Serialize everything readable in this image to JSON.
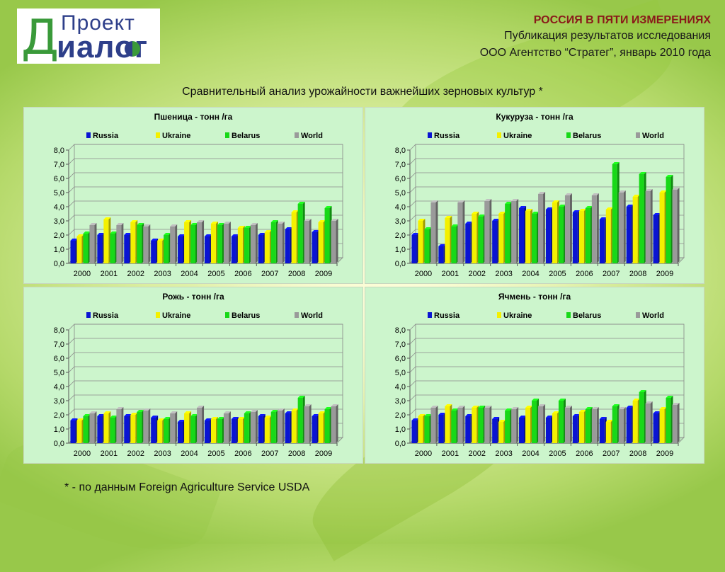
{
  "header": {
    "title": "РОССИЯ В ПЯТИ ИЗМЕРЕНИЯХ",
    "line2": "Публикация результатов исследования",
    "line3": "ООО Агентство “Стратег”, январь 2010 года"
  },
  "logo": {
    "top": "Проект",
    "d": "Д",
    "bottom": "иалог"
  },
  "main_title": "Сравнительный анализ урожайности важнейших зерновых культур *",
  "footnote": "* - по данным Foreign Agriculture Service USDA",
  "colors": {
    "Russia": "#0a14d2",
    "Ukraine": "#f4f000",
    "Belarus": "#18d818",
    "World": "#9a9a9a"
  },
  "chart_data": [
    {
      "type": "bar",
      "title": "Пшеница - тонн /га",
      "categories": [
        "2000",
        "2001",
        "2002",
        "2003",
        "2004",
        "2005",
        "2006",
        "2007",
        "2008",
        "2009"
      ],
      "ylim": [
        0,
        8
      ],
      "yticks": [
        "0,0",
        "1,0",
        "2,0",
        "3,0",
        "4,0",
        "5,0",
        "6,0",
        "7,0",
        "8,0"
      ],
      "legend": "top",
      "grid": true,
      "series": [
        {
          "name": "Russia",
          "values": [
            1.6,
            2.0,
            2.0,
            1.6,
            1.9,
            1.9,
            1.9,
            2.0,
            2.4,
            2.2
          ]
        },
        {
          "name": "Ukraine",
          "values": [
            1.9,
            3.1,
            2.9,
            1.6,
            2.9,
            2.8,
            2.5,
            2.2,
            3.6,
            2.9
          ]
        },
        {
          "name": "Belarus",
          "values": [
            2.1,
            2.1,
            2.7,
            2.0,
            2.7,
            2.7,
            2.5,
            2.9,
            4.2,
            3.9
          ]
        },
        {
          "name": "World",
          "values": [
            2.7,
            2.7,
            2.6,
            2.6,
            2.9,
            2.8,
            2.7,
            2.8,
            3.0,
            3.0
          ]
        }
      ]
    },
    {
      "type": "bar",
      "title": "Кукуруза - тонн /га",
      "categories": [
        "2000",
        "2001",
        "2002",
        "2003",
        "2004",
        "2005",
        "2006",
        "2007",
        "2008",
        "2009"
      ],
      "ylim": [
        0,
        8
      ],
      "yticks": [
        "0,0",
        "1,0",
        "2,0",
        "3,0",
        "4,0",
        "5,0",
        "6,0",
        "7,0",
        "8,0"
      ],
      "legend": "top",
      "grid": true,
      "series": [
        {
          "name": "Russia",
          "values": [
            2.0,
            1.2,
            2.8,
            3.0,
            3.9,
            3.8,
            3.6,
            3.1,
            4.0,
            3.4
          ]
        },
        {
          "name": "Ukraine",
          "values": [
            3.0,
            3.2,
            3.5,
            3.5,
            3.7,
            4.3,
            3.7,
            3.8,
            4.7,
            5.0
          ]
        },
        {
          "name": "Belarus",
          "values": [
            2.4,
            2.6,
            3.3,
            4.2,
            3.5,
            4.0,
            3.9,
            7.0,
            6.3,
            6.1
          ]
        },
        {
          "name": "World",
          "values": [
            4.3,
            4.3,
            4.4,
            4.4,
            4.9,
            4.8,
            4.8,
            5.0,
            5.1,
            5.2
          ]
        }
      ]
    },
    {
      "type": "bar",
      "title": "Рожь - тонн /га",
      "categories": [
        "2000",
        "2001",
        "2002",
        "2003",
        "2004",
        "2005",
        "2006",
        "2007",
        "2008",
        "2009"
      ],
      "ylim": [
        0,
        8
      ],
      "yticks": [
        "0,0",
        "1,0",
        "2,0",
        "3,0",
        "4,0",
        "5,0",
        "6,0",
        "7,0",
        "8,0"
      ],
      "legend": "top",
      "grid": true,
      "series": [
        {
          "name": "Russia",
          "values": [
            1.6,
            1.9,
            1.9,
            1.8,
            1.5,
            1.6,
            1.7,
            1.9,
            2.1,
            1.9
          ]
        },
        {
          "name": "Ukraine",
          "values": [
            1.6,
            2.1,
            2.0,
            1.6,
            2.1,
            1.7,
            1.7,
            1.8,
            2.3,
            2.1
          ]
        },
        {
          "name": "Belarus",
          "values": [
            1.9,
            1.8,
            2.2,
            1.7,
            1.9,
            1.7,
            2.1,
            2.2,
            3.2,
            2.4
          ]
        },
        {
          "name": "World",
          "values": [
            2.1,
            2.4,
            2.3,
            2.1,
            2.5,
            2.1,
            2.2,
            2.3,
            2.6,
            2.6
          ]
        }
      ]
    },
    {
      "type": "bar",
      "title": "Ячмень - тонн /га",
      "categories": [
        "2000",
        "2001",
        "2002",
        "2003",
        "2004",
        "2005",
        "2006",
        "2007",
        "2008",
        "2009"
      ],
      "ylim": [
        0,
        8
      ],
      "yticks": [
        "0,0",
        "1,0",
        "2,0",
        "3,0",
        "4,0",
        "5,0",
        "6,0",
        "7,0",
        "8,0"
      ],
      "legend": "top",
      "grid": true,
      "series": [
        {
          "name": "Russia",
          "values": [
            1.6,
            2.0,
            1.9,
            1.7,
            1.8,
            1.8,
            1.9,
            1.7,
            2.5,
            2.1
          ]
        },
        {
          "name": "Ukraine",
          "values": [
            1.9,
            2.6,
            2.5,
            1.5,
            2.5,
            2.1,
            2.2,
            1.5,
            3.0,
            2.4
          ]
        },
        {
          "name": "Belarus",
          "values": [
            1.9,
            2.3,
            2.5,
            2.3,
            3.0,
            3.0,
            2.4,
            2.6,
            3.6,
            3.2
          ]
        },
        {
          "name": "World",
          "values": [
            2.5,
            2.5,
            2.5,
            2.4,
            2.6,
            2.5,
            2.4,
            2.4,
            2.8,
            2.7
          ]
        }
      ]
    }
  ]
}
